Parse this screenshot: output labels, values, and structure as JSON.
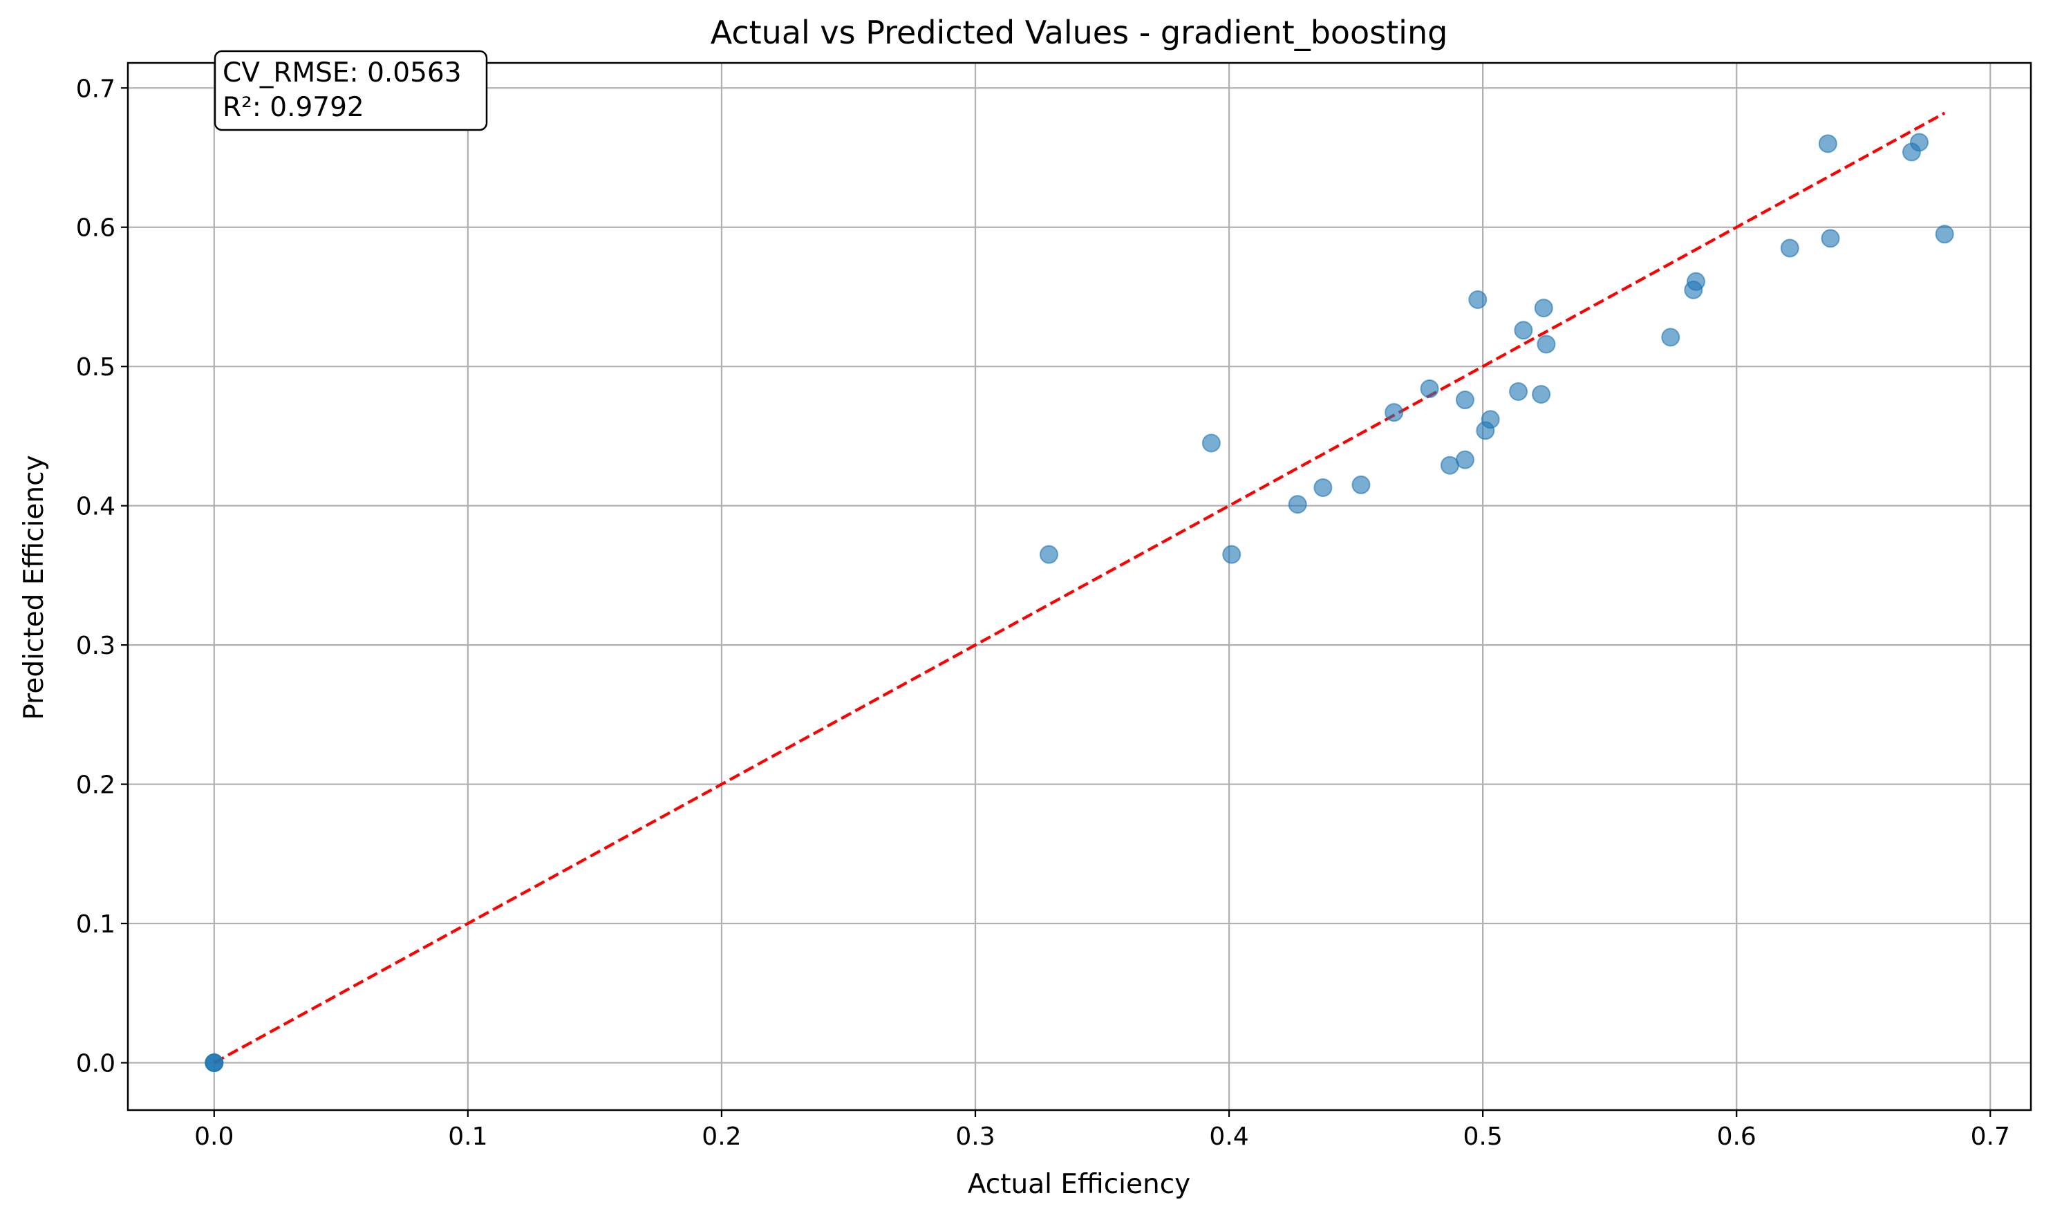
{
  "chart_data": {
    "type": "scatter",
    "title": "Actual vs Predicted Values - gradient_boosting",
    "xlabel": "Actual Efficiency",
    "ylabel": "Predicted Efficiency",
    "xlim": [
      -0.034,
      0.716
    ],
    "ylim": [
      -0.034,
      0.718
    ],
    "xticks": [
      0.0,
      0.1,
      0.2,
      0.3,
      0.4,
      0.5,
      0.6,
      0.7
    ],
    "xtick_labels": [
      "0.0",
      "0.1",
      "0.2",
      "0.3",
      "0.4",
      "0.5",
      "0.6",
      "0.7"
    ],
    "yticks": [
      0.0,
      0.1,
      0.2,
      0.3,
      0.4,
      0.5,
      0.6,
      0.7
    ],
    "ytick_labels": [
      "0.0",
      "0.1",
      "0.2",
      "0.3",
      "0.4",
      "0.5",
      "0.6",
      "0.7"
    ],
    "grid": true,
    "annotation": {
      "lines": [
        "CV_RMSE: 0.0563",
        "R²: 0.9792"
      ]
    },
    "reference_line": {
      "x": [
        0.0,
        0.682
      ],
      "y": [
        0.0,
        0.682
      ],
      "color": "#ff0000",
      "style": "dashed"
    },
    "point_color": "#1f77b4",
    "points": [
      {
        "x": 0.0,
        "y": 0.0
      },
      {
        "x": 0.0,
        "y": 0.0
      },
      {
        "x": 0.0,
        "y": 0.0
      },
      {
        "x": 0.329,
        "y": 0.365
      },
      {
        "x": 0.393,
        "y": 0.445
      },
      {
        "x": 0.401,
        "y": 0.365
      },
      {
        "x": 0.427,
        "y": 0.401
      },
      {
        "x": 0.437,
        "y": 0.413
      },
      {
        "x": 0.452,
        "y": 0.415
      },
      {
        "x": 0.465,
        "y": 0.467
      },
      {
        "x": 0.479,
        "y": 0.484
      },
      {
        "x": 0.487,
        "y": 0.429
      },
      {
        "x": 0.493,
        "y": 0.433
      },
      {
        "x": 0.493,
        "y": 0.476
      },
      {
        "x": 0.498,
        "y": 0.548
      },
      {
        "x": 0.501,
        "y": 0.454
      },
      {
        "x": 0.503,
        "y": 0.462
      },
      {
        "x": 0.514,
        "y": 0.482
      },
      {
        "x": 0.516,
        "y": 0.526
      },
      {
        "x": 0.523,
        "y": 0.48
      },
      {
        "x": 0.524,
        "y": 0.542
      },
      {
        "x": 0.525,
        "y": 0.516
      },
      {
        "x": 0.574,
        "y": 0.521
      },
      {
        "x": 0.583,
        "y": 0.555
      },
      {
        "x": 0.584,
        "y": 0.561
      },
      {
        "x": 0.621,
        "y": 0.585
      },
      {
        "x": 0.636,
        "y": 0.66
      },
      {
        "x": 0.637,
        "y": 0.592
      },
      {
        "x": 0.669,
        "y": 0.654
      },
      {
        "x": 0.672,
        "y": 0.661
      },
      {
        "x": 0.682,
        "y": 0.595
      }
    ]
  }
}
